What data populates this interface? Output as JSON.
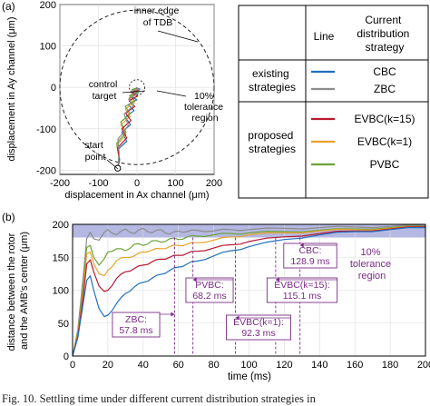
{
  "caption": "Fig. 10.   Settling time under different current distribution strategies in",
  "colors": {
    "CBC": "#1f6fc0",
    "ZBC": "#8c8c8c",
    "EVBC(k=15)": "#b8192f",
    "EVBC(k=1)": "#e8a22a",
    "PVBC": "#6ca33a",
    "annotation": "#7a2b86",
    "tolerance_band": "#b5b8e2"
  },
  "panel_a": {
    "panel_label": "(a)",
    "annotations": {
      "tdb": [
        "inner edge",
        "of TDB"
      ],
      "control": [
        "control",
        "target"
      ],
      "tolerance": [
        "10%",
        "tolerance",
        "region"
      ],
      "start": [
        "start",
        "point"
      ]
    }
  },
  "panel_b": {
    "panel_label": "(b)",
    "tolerance_label": [
      "10%",
      "tolerance",
      "region"
    ],
    "settling": [
      {
        "strategy": "ZBC",
        "label": "ZBC:",
        "value": "57.8 ms",
        "t": 57.8
      },
      {
        "strategy": "PVBC",
        "label": "PVBC:",
        "value": "68.2 ms",
        "t": 68.2
      },
      {
        "strategy": "EVBC(k=1)",
        "label": "EVBC(k=1):",
        "value": "92.3 ms",
        "t": 92.3
      },
      {
        "strategy": "EVBC(k=15)",
        "label": "EVBC(k=15):",
        "value": "115.1 ms",
        "t": 115.1
      },
      {
        "strategy": "CBC",
        "label": "CBC:",
        "value": "128.9 ms",
        "t": 128.9
      }
    ]
  },
  "legend": {
    "header_line": "Line",
    "header_strategy": [
      "Current",
      "distribution",
      "strategy"
    ],
    "groups": [
      {
        "label": [
          "existing",
          "strategies"
        ],
        "items": [
          "CBC",
          "ZBC"
        ]
      },
      {
        "label": [
          "proposed",
          "strategies"
        ],
        "items": [
          "EVBC(k=15)",
          "EVBC(k=1)",
          "PVBC"
        ]
      }
    ]
  },
  "chart_data": [
    {
      "type": "line",
      "title": "",
      "xlabel": "displacement in Ax channel (μm)",
      "ylabel": "displacement in Ay channel (μm)",
      "xlim": [
        -200,
        200
      ],
      "ylim": [
        -210,
        200
      ],
      "xticks": [
        -200,
        -100,
        0,
        100,
        200
      ],
      "yticks": [
        -200,
        -100,
        0,
        100,
        200
      ],
      "tdb_radius": 200,
      "tolerance_radius": 20,
      "start_point": [
        -50,
        -195
      ],
      "control_target": [
        0,
        0
      ],
      "series": [
        {
          "name": "CBC",
          "x": [
            -50,
            -45,
            -40,
            -36,
            -30,
            -26,
            -21,
            -17,
            -13,
            -10,
            -8,
            -5,
            -3,
            -2,
            -1,
            0
          ],
          "y": [
            -195,
            -175,
            -150,
            -130,
            -108,
            -90,
            -72,
            -56,
            -42,
            -30,
            -20,
            -13,
            -8,
            -4,
            -2,
            0
          ]
        },
        {
          "name": "ZBC",
          "x": [
            -50,
            -46,
            -40,
            -32,
            -24,
            -18,
            -12,
            -8,
            -5,
            -3,
            -1,
            0
          ],
          "y": [
            -195,
            -160,
            -125,
            -92,
            -64,
            -44,
            -28,
            -16,
            -9,
            -5,
            -2,
            0
          ]
        },
        {
          "name": "EVBC(k=15)",
          "x": [
            -50,
            -46,
            -41,
            -36,
            -30,
            -25,
            -20,
            -15,
            -11,
            -8,
            -5,
            -3,
            -1,
            0
          ],
          "y": [
            -195,
            -172,
            -146,
            -122,
            -100,
            -80,
            -62,
            -46,
            -32,
            -21,
            -12,
            -6,
            -2,
            0
          ]
        },
        {
          "name": "EVBC(k=1)",
          "x": [
            -50,
            -47,
            -43,
            -38,
            -32,
            -27,
            -21,
            -16,
            -11,
            -7,
            -4,
            -2,
            0
          ],
          "y": [
            -195,
            -168,
            -140,
            -114,
            -90,
            -70,
            -52,
            -37,
            -25,
            -15,
            -8,
            -3,
            0
          ]
        },
        {
          "name": "PVBC",
          "x": [
            -50,
            -47,
            -43,
            -38,
            -33,
            -27,
            -21,
            -15,
            -10,
            -6,
            -3,
            -1,
            0
          ],
          "y": [
            -195,
            -165,
            -135,
            -108,
            -84,
            -64,
            -46,
            -32,
            -20,
            -11,
            -5,
            -2,
            0
          ]
        }
      ]
    },
    {
      "type": "line",
      "title": "",
      "xlabel": "time (ms)",
      "ylabel": "distance between the rotor and the AMB's center (μm)",
      "xlim": [
        0,
        200
      ],
      "ylim": [
        0,
        200
      ],
      "xticks": [
        0,
        20,
        40,
        60,
        80,
        100,
        120,
        140,
        160,
        180,
        200
      ],
      "yticks": [
        0,
        50,
        100,
        150,
        200
      ],
      "tolerance_band": [
        180,
        200
      ],
      "series": [
        {
          "name": "ZBC",
          "x": [
            0,
            3,
            6,
            8,
            10,
            12,
            15,
            18,
            20,
            25,
            30,
            35,
            40,
            45,
            50,
            55,
            60,
            65,
            70,
            80,
            90,
            100,
            120,
            140,
            160,
            180,
            200
          ],
          "y": [
            0,
            40,
            120,
            178,
            188,
            178,
            176,
            188,
            192,
            184,
            193,
            186,
            194,
            187,
            192,
            185,
            190,
            189,
            191,
            190,
            192,
            192,
            194,
            195,
            196,
            197,
            198
          ]
        },
        {
          "name": "PVBC",
          "x": [
            0,
            3,
            6,
            8,
            10,
            12,
            15,
            18,
            20,
            25,
            30,
            35,
            40,
            45,
            50,
            55,
            60,
            65,
            70,
            80,
            90,
            100,
            120,
            140,
            160,
            180,
            200
          ],
          "y": [
            0,
            35,
            110,
            165,
            168,
            150,
            138,
            148,
            158,
            163,
            160,
            170,
            168,
            175,
            173,
            178,
            177,
            181,
            182,
            184,
            186,
            187,
            189,
            191,
            193,
            195,
            197
          ]
        },
        {
          "name": "EVBC(k=1)",
          "x": [
            0,
            3,
            6,
            8,
            10,
            12,
            15,
            18,
            20,
            25,
            30,
            35,
            40,
            45,
            50,
            55,
            60,
            65,
            70,
            80,
            90,
            100,
            120,
            140,
            160,
            180,
            200
          ],
          "y": [
            0,
            33,
            100,
            155,
            158,
            140,
            125,
            122,
            130,
            145,
            150,
            152,
            158,
            161,
            163,
            166,
            168,
            170,
            172,
            176,
            181,
            184,
            187,
            190,
            192,
            194,
            196
          ]
        },
        {
          "name": "EVBC(k=15)",
          "x": [
            0,
            3,
            6,
            8,
            10,
            12,
            15,
            18,
            20,
            25,
            30,
            35,
            40,
            45,
            50,
            55,
            60,
            65,
            70,
            80,
            90,
            100,
            120,
            140,
            160,
            180,
            200
          ],
          "y": [
            0,
            30,
            90,
            140,
            146,
            128,
            106,
            98,
            100,
            118,
            128,
            133,
            138,
            143,
            147,
            150,
            153,
            156,
            159,
            164,
            169,
            174,
            181,
            186,
            190,
            193,
            196
          ]
        },
        {
          "name": "CBC",
          "x": [
            0,
            3,
            6,
            8,
            10,
            12,
            15,
            18,
            20,
            25,
            30,
            35,
            40,
            45,
            50,
            55,
            60,
            65,
            70,
            80,
            90,
            100,
            120,
            140,
            160,
            180,
            200
          ],
          "y": [
            0,
            28,
            80,
            115,
            122,
            100,
            72,
            60,
            62,
            80,
            95,
            105,
            112,
            118,
            124,
            130,
            135,
            140,
            144,
            152,
            160,
            166,
            177,
            184,
            189,
            192,
            195
          ]
        }
      ]
    }
  ]
}
